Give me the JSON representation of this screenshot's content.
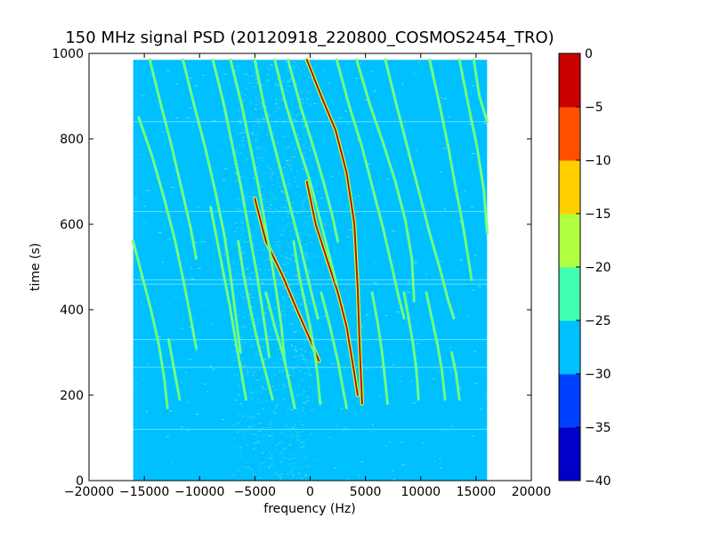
{
  "chart_data": {
    "type": "heatmap",
    "title": "150 MHz signal PSD (20120918_220800_COSMOS2454_TRO)",
    "xlabel": "frequency (Hz)",
    "ylabel": "time (s)",
    "xlim": [
      -20000,
      20000
    ],
    "ylim": [
      0,
      1000
    ],
    "xticks": [
      -20000,
      -15000,
      -10000,
      -5000,
      0,
      5000,
      10000,
      15000,
      20000
    ],
    "xtick_labels": [
      "−20000",
      "−15000",
      "−10000",
      "−5000",
      "0",
      "5000",
      "10000",
      "15000",
      "20000"
    ],
    "yticks": [
      0,
      200,
      400,
      600,
      800,
      1000
    ],
    "ytick_labels": [
      "0",
      "200",
      "400",
      "600",
      "800",
      "1000"
    ],
    "data_extent": {
      "freq": [
        -16000,
        16000
      ],
      "time": [
        0,
        985
      ]
    },
    "background_level": -27.5,
    "colorbar": {
      "levels": [
        -40,
        -35,
        -30,
        -25,
        -20,
        -15,
        -10,
        -5,
        0
      ],
      "tick_labels": [
        "−40",
        "−35",
        "−30",
        "−25",
        "−20",
        "−15",
        "−10",
        "−5",
        "0"
      ],
      "colors": [
        "#0000c8",
        "#0040ff",
        "#00c0ff",
        "#40ffb0",
        "#b0ff40",
        "#ffd000",
        "#ff5000",
        "#c80000"
      ]
    },
    "traces": [
      {
        "level": -2.5,
        "points": [
          [
            -300,
            985
          ],
          [
            1000,
            900
          ],
          [
            2300,
            820
          ],
          [
            3300,
            720
          ],
          [
            4000,
            600
          ],
          [
            4300,
            450
          ],
          [
            4500,
            300
          ],
          [
            4700,
            180
          ]
        ]
      },
      {
        "level": -2.5,
        "points": [
          [
            -5000,
            660
          ],
          [
            -4000,
            560
          ],
          [
            -2500,
            480
          ],
          [
            -1200,
            400
          ],
          [
            0,
            330
          ],
          [
            800,
            280
          ]
        ]
      },
      {
        "level": -2.5,
        "points": [
          [
            -300,
            700
          ],
          [
            500,
            600
          ],
          [
            1500,
            520
          ],
          [
            2500,
            440
          ],
          [
            3300,
            360
          ],
          [
            4000,
            250
          ],
          [
            4300,
            200
          ]
        ]
      },
      {
        "level": -22.5,
        "points": [
          [
            -5000,
            985
          ],
          [
            -4200,
            880
          ],
          [
            -3000,
            760
          ],
          [
            -1800,
            640
          ],
          [
            -800,
            540
          ],
          [
            200,
            430
          ],
          [
            700,
            380
          ]
        ]
      },
      {
        "level": -22.5,
        "points": [
          [
            -3200,
            985
          ],
          [
            -2200,
            880
          ],
          [
            -1000,
            780
          ],
          [
            0,
            700
          ],
          [
            1000,
            600
          ],
          [
            1800,
            520
          ],
          [
            2400,
            460
          ]
        ]
      },
      {
        "level": -22.5,
        "points": [
          [
            -2000,
            985
          ],
          [
            -800,
            870
          ],
          [
            300,
            780
          ],
          [
            1200,
            700
          ],
          [
            2000,
            620
          ],
          [
            2500,
            560
          ]
        ]
      },
      {
        "level": -22.5,
        "points": [
          [
            2400,
            985
          ],
          [
            3500,
            880
          ],
          [
            4700,
            780
          ],
          [
            5700,
            680
          ],
          [
            6600,
            590
          ],
          [
            7400,
            500
          ],
          [
            8000,
            430
          ],
          [
            8500,
            380
          ]
        ]
      },
      {
        "level": -22.5,
        "points": [
          [
            4200,
            985
          ],
          [
            5400,
            880
          ],
          [
            6600,
            790
          ],
          [
            7700,
            700
          ],
          [
            8600,
            610
          ],
          [
            9200,
            520
          ],
          [
            9400,
            420
          ]
        ]
      },
      {
        "level": -22.5,
        "points": [
          [
            6800,
            985
          ],
          [
            7800,
            880
          ],
          [
            8800,
            780
          ],
          [
            9800,
            680
          ],
          [
            10800,
            580
          ],
          [
            11800,
            490
          ],
          [
            12500,
            420
          ],
          [
            13000,
            380
          ]
        ]
      },
      {
        "level": -22.5,
        "points": [
          [
            10800,
            985
          ],
          [
            11700,
            880
          ],
          [
            12500,
            780
          ],
          [
            13200,
            680
          ],
          [
            13800,
            600
          ],
          [
            14300,
            520
          ],
          [
            14600,
            470
          ]
        ]
      },
      {
        "level": -22.5,
        "points": [
          [
            14800,
            985
          ],
          [
            15300,
            900
          ],
          [
            16000,
            840
          ]
        ]
      },
      {
        "level": -22.5,
        "points": [
          [
            13500,
            985
          ],
          [
            14300,
            880
          ],
          [
            15100,
            780
          ],
          [
            15700,
            680
          ],
          [
            16000,
            580
          ]
        ]
      },
      {
        "level": -22.5,
        "points": [
          [
            -15500,
            850
          ],
          [
            -14300,
            760
          ],
          [
            -13200,
            660
          ],
          [
            -12200,
            560
          ],
          [
            -11400,
            460
          ],
          [
            -10800,
            380
          ],
          [
            -10300,
            310
          ]
        ]
      },
      {
        "level": -22.5,
        "points": [
          [
            -16000,
            560
          ],
          [
            -15200,
            480
          ],
          [
            -14400,
            400
          ],
          [
            -13700,
            320
          ],
          [
            -13200,
            240
          ],
          [
            -12900,
            170
          ]
        ]
      },
      {
        "level": -22.5,
        "points": [
          [
            -14500,
            985
          ],
          [
            -13500,
            880
          ],
          [
            -12500,
            780
          ],
          [
            -11600,
            680
          ],
          [
            -10800,
            590
          ],
          [
            -10300,
            520
          ]
        ]
      },
      {
        "level": -22.5,
        "points": [
          [
            -11500,
            985
          ],
          [
            -10500,
            880
          ],
          [
            -9500,
            780
          ],
          [
            -8600,
            680
          ],
          [
            -7800,
            580
          ],
          [
            -7200,
            480
          ],
          [
            -6700,
            380
          ],
          [
            -6300,
            300
          ]
        ]
      },
      {
        "level": -22.5,
        "points": [
          [
            -8800,
            985
          ],
          [
            -7800,
            880
          ],
          [
            -7000,
            780
          ],
          [
            -6200,
            680
          ],
          [
            -5500,
            580
          ],
          [
            -4800,
            480
          ],
          [
            -4200,
            380
          ],
          [
            -3700,
            290
          ]
        ]
      },
      {
        "level": -22.5,
        "points": [
          [
            -7200,
            985
          ],
          [
            -6200,
            880
          ],
          [
            -5400,
            780
          ],
          [
            -4600,
            680
          ],
          [
            -3800,
            560
          ],
          [
            -3100,
            450
          ],
          [
            -2600,
            360
          ],
          [
            -2300,
            280
          ]
        ]
      },
      {
        "level": -22.5,
        "points": [
          [
            -9000,
            640
          ],
          [
            -8400,
            560
          ],
          [
            -7800,
            480
          ],
          [
            -7200,
            400
          ],
          [
            -6700,
            320
          ],
          [
            -6200,
            250
          ],
          [
            -5800,
            190
          ]
        ]
      },
      {
        "level": -22.5,
        "points": [
          [
            -6500,
            560
          ],
          [
            -6000,
            480
          ],
          [
            -5400,
            400
          ],
          [
            -4700,
            320
          ],
          [
            -4000,
            250
          ],
          [
            -3400,
            190
          ]
        ]
      },
      {
        "level": -22.5,
        "points": [
          [
            -1500,
            560
          ],
          [
            -1000,
            480
          ],
          [
            -500,
            420
          ],
          [
            0,
            360
          ],
          [
            400,
            300
          ],
          [
            700,
            240
          ],
          [
            900,
            180
          ]
        ]
      },
      {
        "level": -22.5,
        "points": [
          [
            -4000,
            440
          ],
          [
            -3200,
            360
          ],
          [
            -2400,
            290
          ],
          [
            -1800,
            220
          ],
          [
            -1400,
            170
          ]
        ]
      },
      {
        "level": -22.5,
        "points": [
          [
            1000,
            440
          ],
          [
            1800,
            360
          ],
          [
            2500,
            280
          ],
          [
            3000,
            210
          ],
          [
            3300,
            170
          ]
        ]
      },
      {
        "level": -22.5,
        "points": [
          [
            5600,
            440
          ],
          [
            6100,
            370
          ],
          [
            6500,
            300
          ],
          [
            6800,
            230
          ],
          [
            7000,
            180
          ]
        ]
      },
      {
        "level": -22.5,
        "points": [
          [
            8500,
            440
          ],
          [
            8900,
            380
          ],
          [
            9300,
            320
          ],
          [
            9600,
            260
          ],
          [
            9800,
            190
          ]
        ]
      },
      {
        "level": -22.5,
        "points": [
          [
            10500,
            440
          ],
          [
            11000,
            380
          ],
          [
            11500,
            320
          ],
          [
            11900,
            260
          ],
          [
            12200,
            190
          ]
        ]
      },
      {
        "level": -22.5,
        "points": [
          [
            12800,
            300
          ],
          [
            13200,
            250
          ],
          [
            13500,
            190
          ]
        ]
      },
      {
        "level": -22.5,
        "points": [
          [
            -12800,
            330
          ],
          [
            -12300,
            260
          ],
          [
            -11800,
            190
          ]
        ]
      }
    ]
  }
}
